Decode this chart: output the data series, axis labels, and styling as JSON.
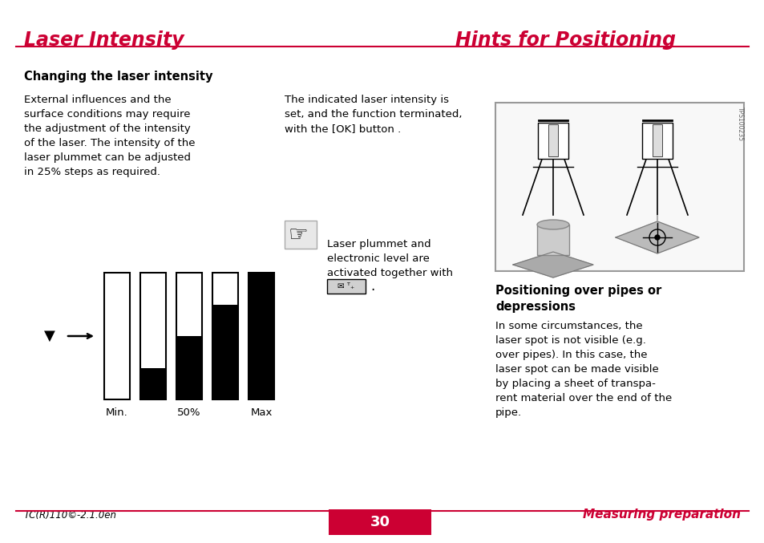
{
  "page_bg": "#ffffff",
  "red_color": "#cc0033",
  "black_color": "#000000",
  "left_title": "Laser Intensity",
  "right_title": "Hints for Positioning",
  "left_subtitle": "Changing the laser intensity",
  "left_text1": "External influences and the\nsurface conditions may require\nthe adjustment of the intensity\nof the laser. The intensity of the\nlaser plummet can be adjusted\nin 25% steps as required.",
  "right_text1": "The indicated laser intensity is\nset, and the function terminated,\nwith the [OK] button .",
  "note_text": "Laser plummet and\nelectronic level are\nactivated together with",
  "bar_labels": [
    "Min.",
    "50%",
    "Max"
  ],
  "bar_fills": [
    0.0,
    0.25,
    0.5,
    0.75,
    1.0
  ],
  "pos_subtitle": "Positioning over pipes or\ndepressions",
  "pos_text": "In some circumstances, the\nlaser spot is not visible (e.g.\nover pipes). In this case, the\nlaser spot can be made visible\nby placing a sheet of transpa-\nrent material over the end of the\npipe.",
  "footer_left": "TC(R)110©-2.1.0en",
  "footer_page": "30",
  "footer_right": "Measuring preparation"
}
